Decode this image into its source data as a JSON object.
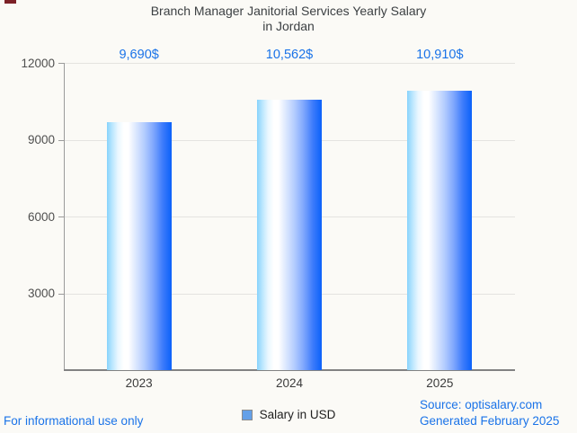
{
  "chart_data": {
    "type": "bar",
    "title": "Branch Manager Janitorial Services Yearly Salary in Jordan",
    "title_lines": [
      "Branch Manager Janitorial Services Yearly Salary",
      "in Jordan"
    ],
    "categories": [
      "2023",
      "2024",
      "2025"
    ],
    "values": [
      9690,
      10562,
      10910
    ],
    "value_labels": [
      "9,690$",
      "10,562$",
      "10,910$"
    ],
    "series_name": "Salary in USD",
    "xlabel": "",
    "ylabel": "",
    "ylim": [
      0,
      12000
    ],
    "yticks": [
      3000,
      6000,
      9000,
      12000
    ],
    "grid": true,
    "legend_position": "bottom",
    "bar_gradient": [
      "#87d3fc",
      "#ffffff",
      "#0a61fa"
    ],
    "value_label_color": "#1a73e8"
  },
  "legend": {
    "label": "Salary in USD",
    "swatch_color": "#64a0e8"
  },
  "footer": {
    "left_note": "For informational use only",
    "source_line1": "Source: optisalary.com",
    "source_line2": "Generated February 2025"
  },
  "colors": {
    "background": "#fbfaf6",
    "title_text": "#3c4043",
    "blue_text": "#1a73e8",
    "gridline": "#e4e3e0",
    "axis": "#828282",
    "tick_label": "#4f4f4f",
    "top_left_mark": "#7c2127"
  }
}
